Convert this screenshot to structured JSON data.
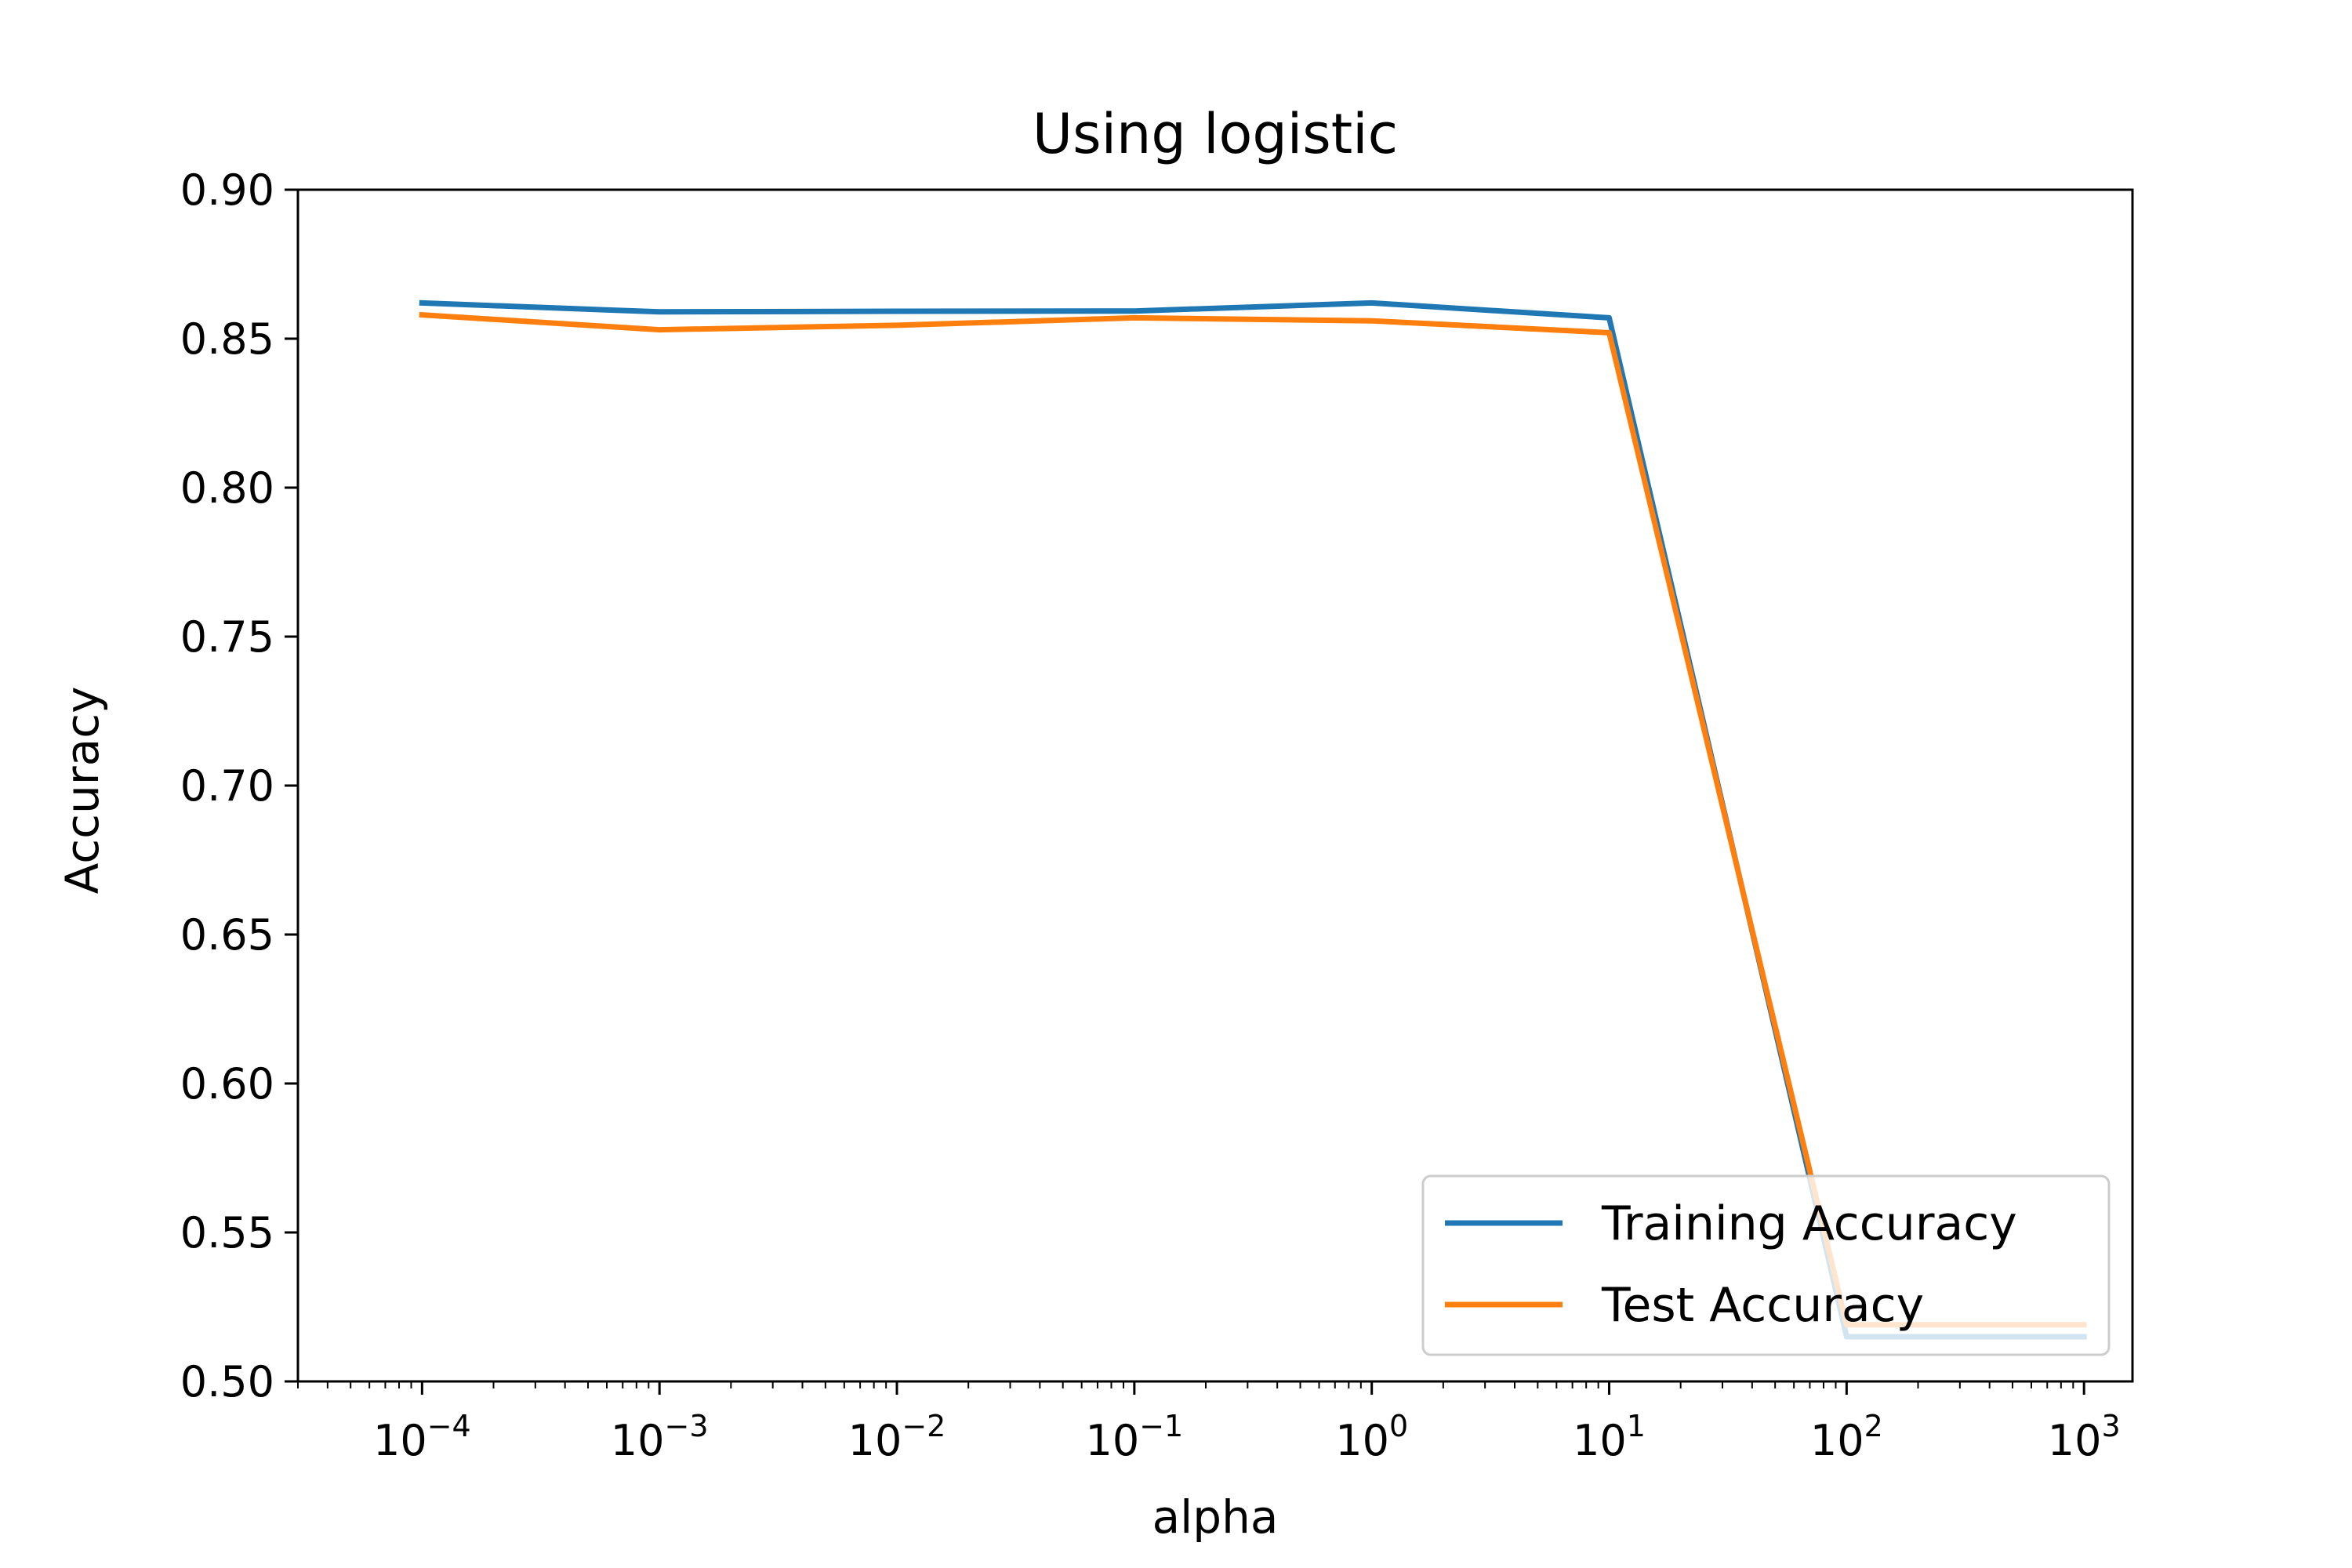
{
  "chart_data": {
    "type": "line",
    "title": "Using logistic",
    "xlabel": "alpha",
    "ylabel": "Accuracy",
    "x_scale": "log",
    "x": [
      0.0001,
      0.001,
      0.01,
      0.1,
      1,
      10,
      100,
      1000
    ],
    "xlim": [
      3e-05,
      1600
    ],
    "ylim": [
      0.5,
      0.9
    ],
    "x_ticks": [
      0.0001,
      0.001,
      0.01,
      0.1,
      1,
      10,
      100,
      1000
    ],
    "x_tick_labels": [
      {
        "base": "10",
        "exp": "−4"
      },
      {
        "base": "10",
        "exp": "−3"
      },
      {
        "base": "10",
        "exp": "−2"
      },
      {
        "base": "10",
        "exp": "−1"
      },
      {
        "base": "10",
        "exp": "0"
      },
      {
        "base": "10",
        "exp": "1"
      },
      {
        "base": "10",
        "exp": "2"
      },
      {
        "base": "10",
        "exp": "3"
      }
    ],
    "y_ticks": [
      0.5,
      0.55,
      0.6,
      0.65,
      0.7,
      0.75,
      0.8,
      0.85,
      0.9
    ],
    "y_tick_labels": [
      "0.50",
      "0.55",
      "0.60",
      "0.65",
      "0.70",
      "0.75",
      "0.80",
      "0.85",
      "0.90"
    ],
    "grid": false,
    "legend_position": "lower-right",
    "series": [
      {
        "name": "Training Accuracy",
        "color": "#1f77b4",
        "values": [
          0.862,
          0.859,
          0.8592,
          0.8593,
          0.862,
          0.857,
          0.515,
          0.515
        ]
      },
      {
        "name": "Test Accuracy",
        "color": "#ff7f0e",
        "values": [
          0.858,
          0.853,
          0.8545,
          0.857,
          0.856,
          0.852,
          0.519,
          0.519
        ]
      }
    ]
  }
}
